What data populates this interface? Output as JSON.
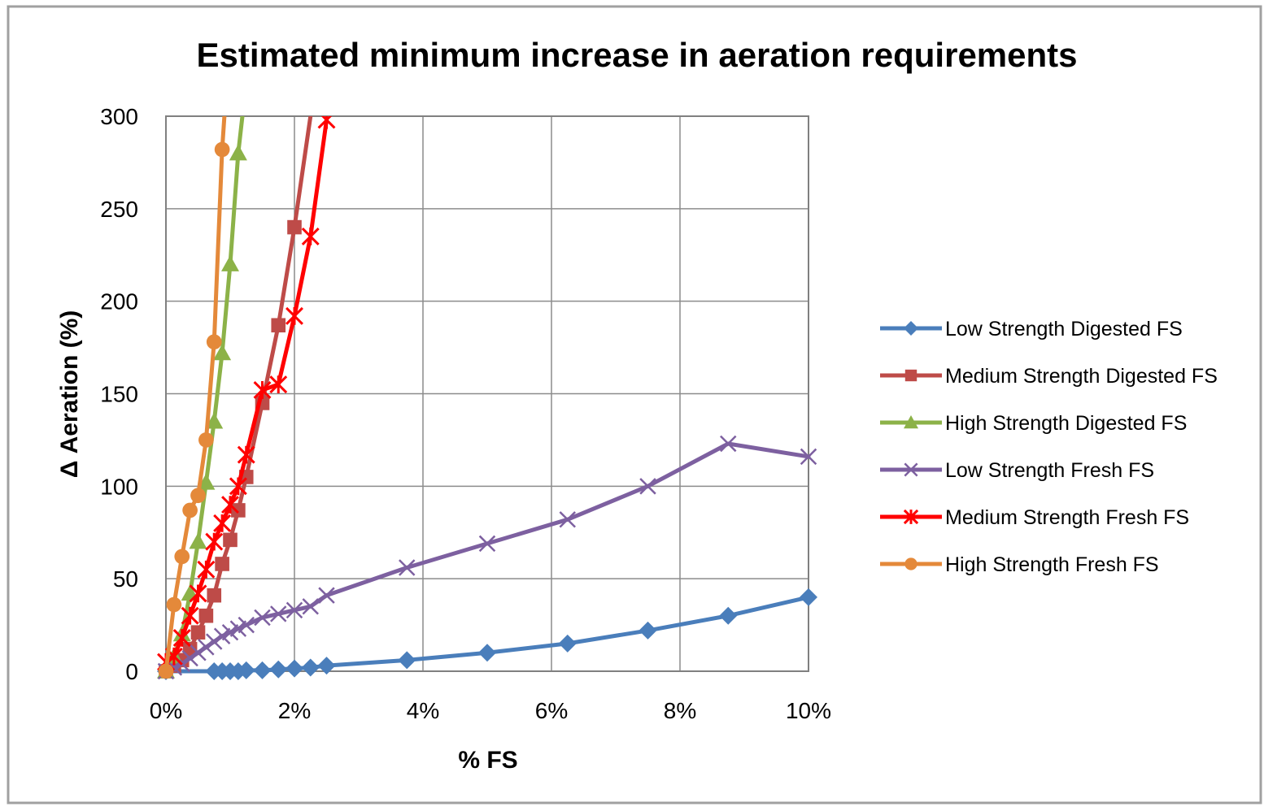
{
  "chart_data": {
    "type": "line",
    "title": "Estimated minimum increase in aeration requirements",
    "xlabel": "% FS",
    "ylabel": "Δ Aeration (%)",
    "xlim": [
      0,
      10
    ],
    "ylim": [
      0,
      300
    ],
    "x_ticks": [
      0,
      2,
      4,
      6,
      8,
      10
    ],
    "x_tick_labels": [
      "0%",
      "2%",
      "4%",
      "6%",
      "8%",
      "10%"
    ],
    "y_ticks": [
      0,
      50,
      100,
      150,
      200,
      250,
      300
    ],
    "y_tick_labels": [
      "0",
      "50",
      "100",
      "150",
      "200",
      "250",
      "300"
    ],
    "grid": true,
    "legend_position": "right",
    "series": [
      {
        "name": "Low Strength Digested FS",
        "color": "#4A7EBB",
        "marker": "diamond",
        "x": [
          0,
          0.75,
          0.875,
          1.0,
          1.125,
          1.25,
          1.5,
          1.75,
          2.0,
          2.25,
          2.5,
          3.75,
          5.0,
          6.25,
          7.5,
          8.75,
          10.0
        ],
        "y": [
          0,
          0,
          0,
          0,
          0,
          0.5,
          0.5,
          1,
          1.5,
          2,
          3,
          6,
          10,
          15,
          22,
          30,
          40
        ]
      },
      {
        "name": "Medium Strength Digested FS",
        "color": "#BE4B48",
        "marker": "square",
        "x": [
          0,
          0.125,
          0.25,
          0.375,
          0.5,
          0.625,
          0.75,
          0.875,
          1.0,
          1.125,
          1.25,
          1.5,
          1.75,
          2.0,
          2.25
        ],
        "y": [
          0,
          3,
          6,
          12,
          21,
          30,
          41,
          58,
          71,
          87,
          105,
          145,
          187,
          240,
          300
        ]
      },
      {
        "name": "High Strength Digested FS",
        "color": "#8CB248",
        "marker": "triangle",
        "x": [
          0,
          0.125,
          0.25,
          0.375,
          0.5,
          0.625,
          0.75,
          0.875,
          1.0,
          1.125,
          1.19
        ],
        "y": [
          0,
          8,
          20,
          42,
          70,
          102,
          135,
          172,
          220,
          280,
          300
        ]
      },
      {
        "name": "Low Strength Fresh FS",
        "color": "#7D60A0",
        "marker": "x",
        "x": [
          0,
          0.125,
          0.25,
          0.375,
          0.5,
          0.625,
          0.75,
          0.875,
          1.0,
          1.125,
          1.25,
          1.5,
          1.75,
          2.0,
          2.25,
          2.5,
          3.75,
          5.0,
          6.25,
          7.5,
          8.75,
          10.0
        ],
        "y": [
          0,
          2,
          4,
          7,
          10,
          13,
          16,
          19,
          21,
          23,
          25,
          29,
          31,
          33,
          35,
          41,
          56,
          69,
          82,
          100,
          123,
          116
        ]
      },
      {
        "name": "Medium Strength Fresh FS",
        "color": "#FF0000",
        "marker": "star",
        "x": [
          0,
          0.125,
          0.25,
          0.375,
          0.5,
          0.625,
          0.75,
          0.875,
          1.0,
          1.125,
          1.25,
          1.5,
          1.75,
          2.0,
          2.25,
          2.5
        ],
        "y": [
          5,
          8,
          18,
          30,
          42,
          55,
          70,
          80,
          90,
          100,
          117,
          152,
          155,
          192,
          235,
          298
        ]
      },
      {
        "name": "High Strength Fresh FS",
        "color": "#E4893A",
        "marker": "circle",
        "x": [
          0,
          0.125,
          0.25,
          0.375,
          0.5,
          0.625,
          0.75,
          0.875,
          0.91
        ],
        "y": [
          0,
          36,
          62,
          87,
          95,
          125,
          178,
          282,
          300
        ]
      }
    ]
  }
}
